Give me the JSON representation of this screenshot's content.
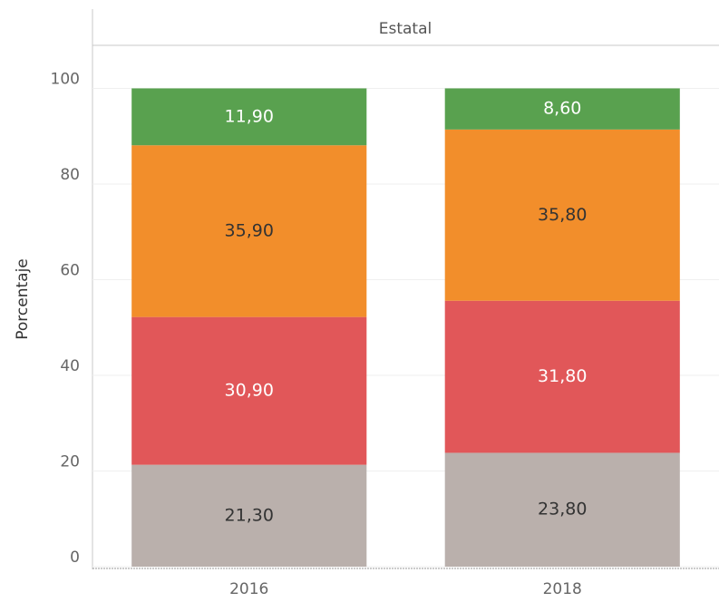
{
  "chart_data": {
    "type": "stacked_bar",
    "facet": "Estatal",
    "ylabel": "Porcentaje",
    "categories": [
      "2016",
      "2018"
    ],
    "series": [
      {
        "color": "#bab0ac",
        "label_color": "#333333",
        "values": [
          21.3,
          23.8
        ],
        "value_labels": [
          "21,30",
          "23,80"
        ]
      },
      {
        "color": "#e15759",
        "label_color": "#ffffff",
        "values": [
          30.9,
          31.8
        ],
        "value_labels": [
          "30,90",
          "31,80"
        ]
      },
      {
        "color": "#f28e2b",
        "label_color": "#333333",
        "values": [
          35.9,
          35.8
        ],
        "value_labels": [
          "35,90",
          "35,80"
        ]
      },
      {
        "color": "#59a14f",
        "label_color": "#ffffff",
        "values": [
          11.9,
          8.6
        ],
        "value_labels": [
          "11,90",
          "8,60"
        ]
      }
    ],
    "ylim": [
      0,
      109
    ],
    "yticks": [
      0,
      20,
      40,
      60,
      80,
      100
    ],
    "grid": true
  }
}
